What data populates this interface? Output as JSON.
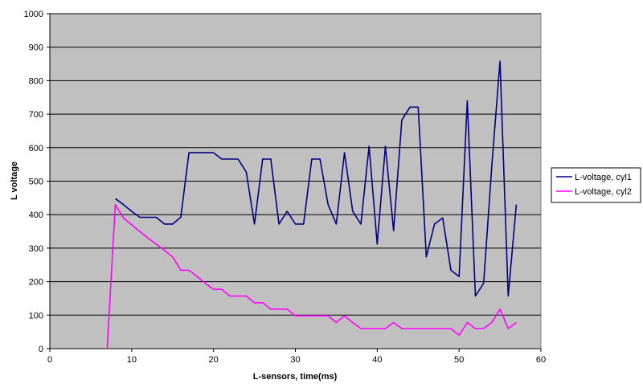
{
  "chart_data": {
    "type": "line",
    "title": "",
    "xlabel": "L-sensors, time(ms)",
    "ylabel": "L voltage",
    "xlim": [
      0,
      60
    ],
    "ylim": [
      0,
      1000
    ],
    "xticks": [
      0,
      10,
      20,
      30,
      40,
      50,
      60
    ],
    "yticks": [
      0,
      100,
      200,
      300,
      400,
      500,
      600,
      700,
      800,
      900,
      1000
    ],
    "grid": true,
    "legend_position": "right",
    "plot_background": "#c0c0c0",
    "series": [
      {
        "name": "L-voltage, cyl1",
        "color": "#000080",
        "x": [
          8,
          9,
          10,
          11,
          12,
          13,
          14,
          15,
          16,
          17,
          18,
          19,
          20,
          21,
          22,
          23,
          24,
          25,
          26,
          27,
          28,
          29,
          30,
          31,
          32,
          33,
          34,
          35,
          36,
          37,
          38,
          39,
          40,
          41,
          42,
          43,
          44,
          45,
          46,
          47,
          48,
          49,
          50,
          51,
          52,
          53,
          54,
          55,
          56,
          57
        ],
        "y": [
          448,
          430,
          410,
          392,
          392,
          392,
          372,
          372,
          392,
          585,
          585,
          585,
          585,
          566,
          566,
          566,
          527,
          372,
          566,
          566,
          372,
          410,
          372,
          372,
          566,
          566,
          430,
          372,
          585,
          410,
          372,
          604,
          312,
          604,
          352,
          682,
          721,
          721,
          274,
          372,
          390,
          234,
          215,
          740,
          157,
          195,
          546,
          858,
          157,
          430
        ]
      },
      {
        "name": "L-voltage, cyl2",
        "color": "#ff00ff",
        "x": [
          7,
          8,
          9,
          10,
          11,
          12,
          13,
          14,
          15,
          16,
          17,
          18,
          19,
          20,
          21,
          22,
          23,
          24,
          25,
          26,
          27,
          28,
          29,
          30,
          31,
          32,
          33,
          34,
          35,
          36,
          37,
          38,
          39,
          40,
          41,
          42,
          43,
          44,
          45,
          46,
          47,
          48,
          49,
          50,
          51,
          52,
          53,
          54,
          55,
          56,
          57
        ],
        "y": [
          0,
          430,
          390,
          370,
          350,
          330,
          312,
          293,
          274,
          234,
          234,
          215,
          195,
          177,
          177,
          157,
          157,
          157,
          137,
          137,
          118,
          118,
          118,
          98,
          98,
          98,
          98,
          98,
          78,
          98,
          78,
          60,
          60,
          60,
          60,
          78,
          60,
          60,
          60,
          60,
          60,
          60,
          60,
          40,
          78,
          60,
          60,
          78,
          118,
          60,
          78
        ]
      }
    ]
  }
}
